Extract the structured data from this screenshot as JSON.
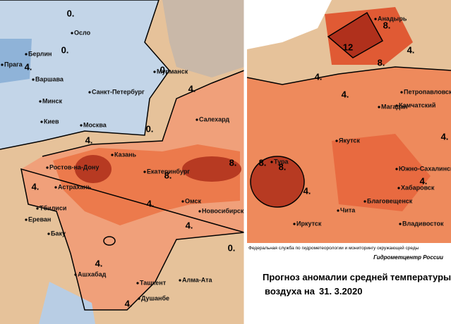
{
  "left_map": {
    "cities": [
      "Осло",
      "Берлин",
      "Прага",
      "Варшава",
      "Мурманск",
      "Санкт-Петербург",
      "Минск",
      "Киев",
      "Москва",
      "Салехард",
      "Казань",
      "Ростов-на-Дону",
      "Екатеринбург",
      "Астрахань",
      "Омск",
      "Тбилиси",
      "Новосибирск",
      "Ереван",
      "Баку",
      "Ашхабад",
      "Ташкент",
      "Алма-Ата",
      "Душанбе"
    ],
    "contour_labels": [
      "0.",
      "0.",
      "4.",
      "0.",
      "4.",
      "0.",
      "4.",
      "4.",
      "8.",
      "8.",
      "4.",
      "4.",
      "0.",
      "4.",
      "4."
    ]
  },
  "right_map": {
    "cities": [
      "Анадырь",
      "Петропавловск",
      "Камчатский",
      "Магадан",
      "Якутск",
      "Тура",
      "Южно-Сахалинск",
      "Хабаровск",
      "Благовещенск",
      "Чита",
      "Иркутск",
      "Владивосток"
    ],
    "contour_labels": [
      "8.",
      "12",
      "4.",
      "4.",
      "8.",
      "4.",
      "8.",
      "4.",
      "8.",
      "4.",
      "4."
    ]
  },
  "footer": {
    "agency": "Федеральная служба по гидрометеорологии и мониторингу окружающей среды",
    "center": "Гидрометцентр России",
    "title_line1": "Прогноз аномалии средней температуры",
    "title_line2": "воздуха на",
    "date": "31. 3.2020"
  }
}
